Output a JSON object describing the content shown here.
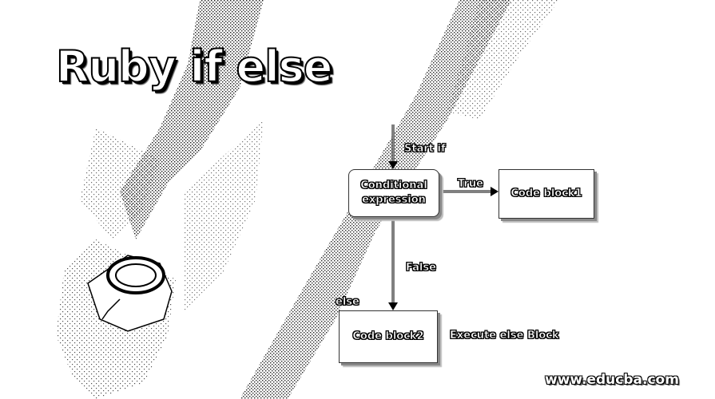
{
  "title": "Ruby if else",
  "diagram": {
    "nodes": {
      "condition": "Conditional expression",
      "code_block1": "Code block1",
      "code_block2": "Code block2"
    },
    "edge_labels": {
      "start": "Start if",
      "true": "True",
      "false": "False",
      "else": "else",
      "execute_else": "Execute else Block"
    }
  },
  "footer": "www.educba.com"
}
